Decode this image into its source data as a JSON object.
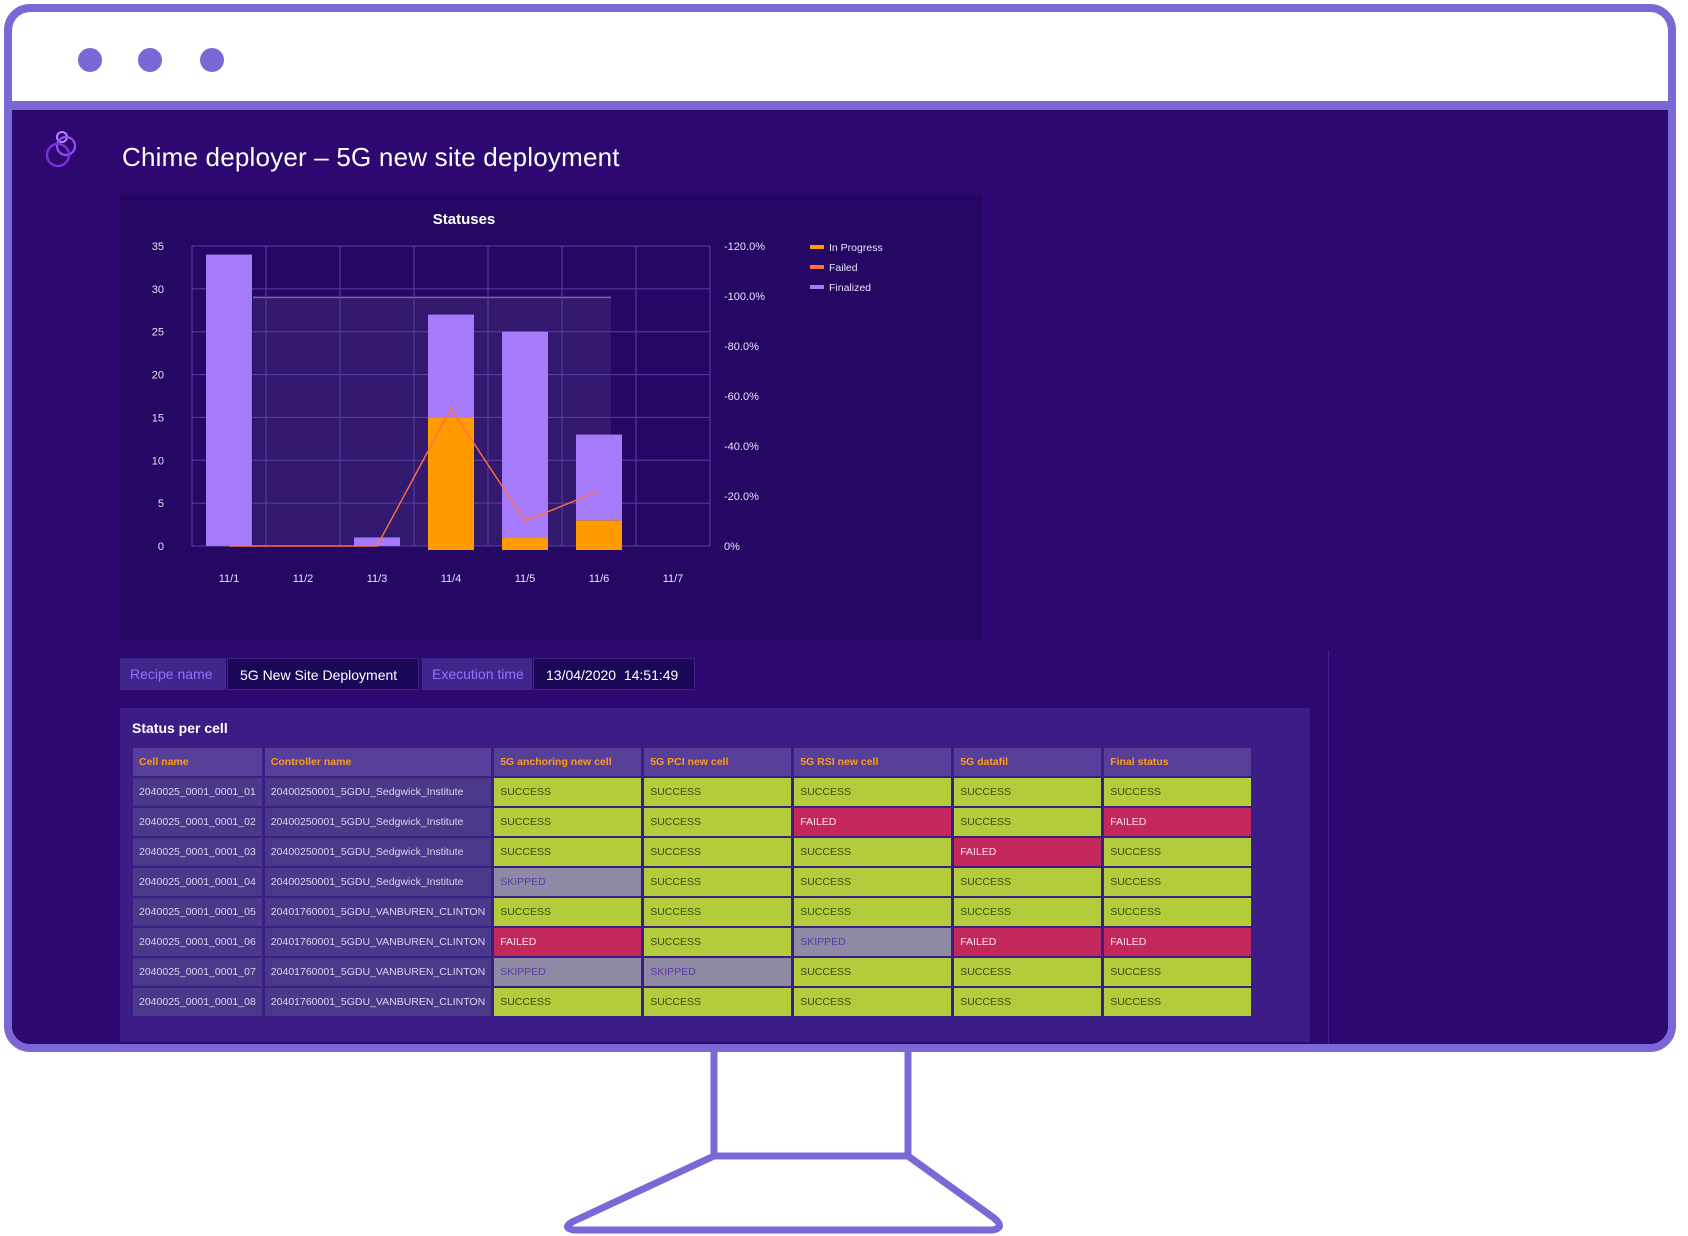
{
  "app": {
    "title": "Chime deployer – 5G new site deployment",
    "logo_icon": "chime-logo-icon"
  },
  "colors": {
    "frame": "#7b68d6",
    "background": "#2d0870",
    "in_progress": "#ff9a00",
    "failed": "#ff7043",
    "finalized": "#a57bfc",
    "success": "#b2cc3c",
    "failed_cell": "#c2285c",
    "skipped_cell": "#8f8aa4"
  },
  "chart_data": {
    "type": "bar",
    "title": "Statuses",
    "categories": [
      "11/1",
      "11/2",
      "11/3",
      "11/4",
      "11/5",
      "11/6",
      "11/7"
    ],
    "ylim": [
      0,
      35
    ],
    "y_ticks": [
      "0",
      "5",
      "10",
      "15",
      "20",
      "25",
      "30",
      "35"
    ],
    "y2_ticks": [
      "0%",
      "-20.0%",
      "-40.0%",
      "-60.0%",
      "-80.0%",
      "-100.0%",
      "-120.0%"
    ],
    "y2lim": [
      0,
      120
    ],
    "stacked": true,
    "series": [
      {
        "name": "In Progress",
        "kind": "bar",
        "values": [
          0,
          0,
          0,
          15,
          1,
          3,
          0
        ]
      },
      {
        "name": "Failed",
        "kind": "line",
        "axis": "right",
        "values": [
          0,
          0,
          0,
          55,
          10,
          22,
          null
        ]
      },
      {
        "name": "Finalized",
        "kind": "bar",
        "values": [
          34,
          0,
          1,
          12,
          24,
          10,
          0
        ]
      }
    ],
    "legend_position": "top-right",
    "grid": true
  },
  "info": {
    "recipe_label": "Recipe name",
    "recipe_value": "5G New Site Deployment",
    "exec_label": "Execution time",
    "exec_value": "13/04/2020  14:51:49"
  },
  "table": {
    "title": "Status per cell",
    "columns": [
      "Cell name",
      "Controller name",
      "5G anchoring new cell",
      "5G PCI new cell",
      "5G RSI new cell",
      "5G datafil",
      "Final status"
    ],
    "rows": [
      [
        "2040025_0001_0001_01",
        "20400250001_5GDU_Sedgwick_Institute",
        "SUCCESS",
        "SUCCESS",
        "SUCCESS",
        "SUCCESS",
        "SUCCESS"
      ],
      [
        "2040025_0001_0001_02",
        "20400250001_5GDU_Sedgwick_Institute",
        "SUCCESS",
        "SUCCESS",
        "FAILED",
        "SUCCESS",
        "FAILED"
      ],
      [
        "2040025_0001_0001_03",
        "20400250001_5GDU_Sedgwick_Institute",
        "SUCCESS",
        "SUCCESS",
        "SUCCESS",
        "FAILED",
        "SUCCESS"
      ],
      [
        "2040025_0001_0001_04",
        "20400250001_5GDU_Sedgwick_Institute",
        "SKIPPED",
        "SUCCESS",
        "SUCCESS",
        "SUCCESS",
        "SUCCESS"
      ],
      [
        "2040025_0001_0001_05",
        "20401760001_5GDU_VANBUREN_CLINTON",
        "SUCCESS",
        "SUCCESS",
        "SUCCESS",
        "SUCCESS",
        "SUCCESS"
      ],
      [
        "2040025_0001_0001_06",
        "20401760001_5GDU_VANBUREN_CLINTON",
        "FAILED",
        "SUCCESS",
        "SKIPPED",
        "FAILED",
        "FAILED"
      ],
      [
        "2040025_0001_0001_07",
        "20401760001_5GDU_VANBUREN_CLINTON",
        "SKIPPED",
        "SKIPPED",
        "SUCCESS",
        "SUCCESS",
        "SUCCESS"
      ],
      [
        "2040025_0001_0001_08",
        "20401760001_5GDU_VANBUREN_CLINTON",
        "SUCCESS",
        "SUCCESS",
        "SUCCESS",
        "SUCCESS",
        "SUCCESS"
      ]
    ]
  }
}
